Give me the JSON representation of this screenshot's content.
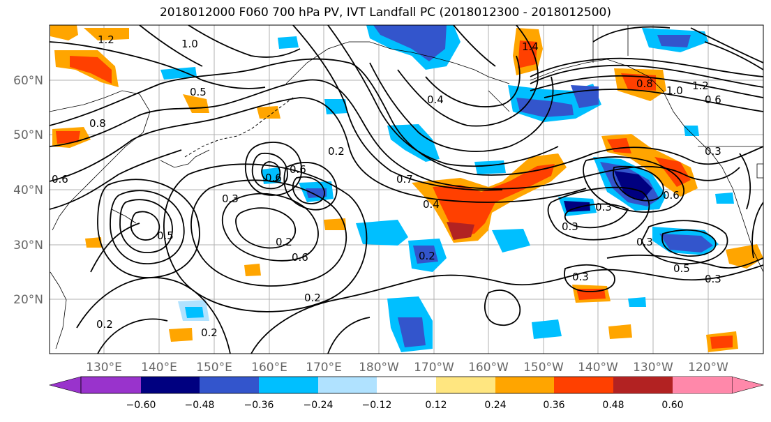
{
  "title": "2018012000 F060 700 hPa PV, IVT Landfall PC (2018012300 - 2018012500)",
  "lat_labels": [
    "60°N",
    "50°N",
    "40°N",
    "30°N",
    "20°N"
  ],
  "lon_labels": [
    "130°E",
    "140°E",
    "150°E",
    "160°E",
    "170°E",
    "180°W",
    "170°W",
    "160°W",
    "150°W",
    "140°W",
    "130°W",
    "120°W"
  ],
  "colorbar": {
    "ticks": [
      "−0.60",
      "−0.48",
      "−0.36",
      "−0.24",
      "−0.12",
      "0.12",
      "0.24",
      "0.36",
      "0.48",
      "0.60"
    ],
    "colors": [
      "#9933cc",
      "#000080",
      "#3355cc",
      "#00bfff",
      "#b0e2ff",
      "#ffffff",
      "#ffe680",
      "#ffa500",
      "#ff4000",
      "#b22222",
      "#ff88aa"
    ]
  },
  "contour_labels": [
    "1.2",
    "1.4",
    "1.0",
    "0.5",
    "0.8",
    "0.6",
    "0.3",
    "0.4",
    "0.7",
    "0.2",
    "0.6",
    "0.3",
    "0.5",
    "0.4",
    "0.2",
    "0.6",
    "0.3",
    "0.2",
    "0.3",
    "0.5",
    "0.3",
    "0.6",
    "0.8",
    "1.0",
    "1.2",
    "0.6",
    "0.2",
    "0.3",
    "0.2",
    "0.6",
    "0.3",
    "0.2"
  ]
}
